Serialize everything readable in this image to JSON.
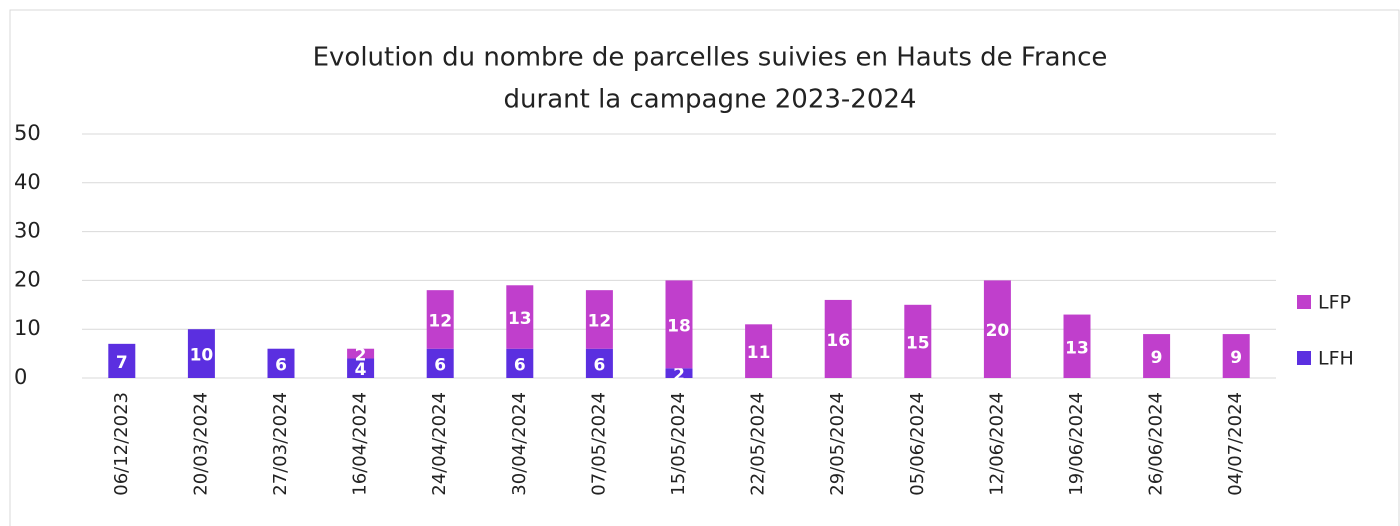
{
  "chart_data": {
    "type": "stacked_bar",
    "title": [
      "Evolution du nombre de parcelles suivies en Hauts de France",
      "durant la campagne 2023-2024"
    ],
    "categories": [
      "06/12/2023",
      "20/03/2024",
      "27/03/2024",
      "16/04/2024",
      "24/04/2024",
      "30/04/2024",
      "07/05/2024",
      "15/05/2024",
      "22/05/2024",
      "29/05/2024",
      "05/06/2024",
      "12/06/2024",
      "19/06/2024",
      "26/06/2024",
      "04/07/2024"
    ],
    "series": [
      {
        "name": "LFH",
        "color": "#5b2fe0",
        "values": [
          7,
          10,
          6,
          4,
          6,
          6,
          6,
          2,
          null,
          null,
          null,
          null,
          null,
          null,
          null
        ]
      },
      {
        "name": "LFP",
        "color": "#c03fcc",
        "values": [
          null,
          null,
          null,
          2,
          12,
          13,
          12,
          18,
          11,
          16,
          15,
          20,
          13,
          9,
          9
        ]
      }
    ],
    "ylim": [
      0,
      50
    ],
    "yticks": [
      0,
      10,
      20,
      30,
      40,
      50
    ],
    "grid": true,
    "legend": "right"
  }
}
